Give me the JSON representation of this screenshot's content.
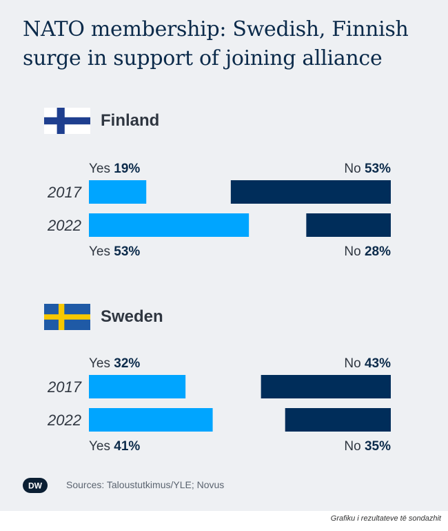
{
  "title": "NATO membership: Swedish, Finnish surge in support of joining alliance",
  "source": "Sources: Taloustutkimus/YLE; Novus",
  "logo_text": "DW",
  "caption": "Grafiku i rezultateve të sondazhit",
  "colors": {
    "yes": "#00a5ff",
    "no": "#002d5a",
    "background": "#eef0f3",
    "title": "#0b2a4a"
  },
  "chart_data": [
    {
      "type": "bar",
      "title": "Finland",
      "categories": [
        "2017",
        "2022"
      ],
      "series": [
        {
          "name": "Yes",
          "values": [
            19,
            53
          ]
        },
        {
          "name": "No",
          "values": [
            53,
            28
          ]
        }
      ],
      "value_suffix": "%",
      "flag": "finland-flag-icon"
    },
    {
      "type": "bar",
      "title": "Sweden",
      "categories": [
        "2017",
        "2022"
      ],
      "series": [
        {
          "name": "Yes",
          "values": [
            32,
            41
          ]
        },
        {
          "name": "No",
          "values": [
            43,
            35
          ]
        }
      ],
      "value_suffix": "%",
      "flag": "sweden-flag-icon"
    }
  ]
}
